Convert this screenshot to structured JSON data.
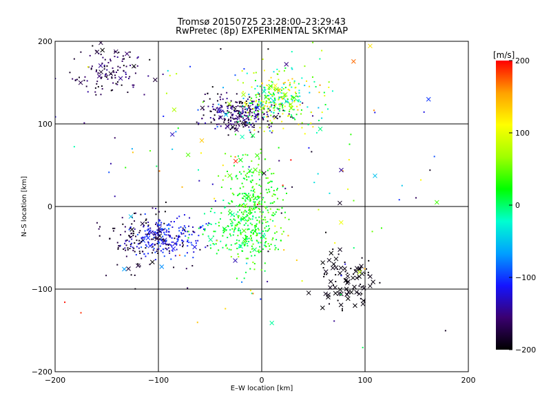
{
  "chart_data": {
    "type": "scatter",
    "title": "Tromsø 20150725 23:28:00–23:29:43",
    "subtitle": "RwPretec (8p) EXPERIMENTAL SKYMAP",
    "xlabel": "E–W location [km]",
    "ylabel": "N–S location [km]",
    "xlim": [
      -200,
      200
    ],
    "ylim": [
      -200,
      200
    ],
    "xticks": [
      -200,
      -100,
      0,
      100,
      200
    ],
    "yticks": [
      -200,
      -100,
      0,
      100,
      200
    ],
    "grid": true,
    "colorbar": {
      "label": "[m/s]",
      "range": [
        -200,
        200
      ],
      "ticks": [
        200,
        100,
        0,
        -100,
        -200
      ],
      "colormap": [
        "#000000",
        "#3a0070",
        "#1414ff",
        "#00a0ff",
        "#00ffd0",
        "#00ff00",
        "#a0ff00",
        "#ffff00",
        "#ffa000",
        "#ff0000"
      ]
    },
    "marker_types": [
      "dot",
      "cross"
    ],
    "clusters": [
      {
        "cx": -150,
        "cy": 165,
        "sx": 18,
        "sy": 18,
        "n": 110,
        "vmin": -200,
        "vmax": -140,
        "crosses": 14
      },
      {
        "cx": -20,
        "cy": 112,
        "sx": 18,
        "sy": 11,
        "n": 260,
        "vmin": -200,
        "vmax": -130,
        "crosses": 12
      },
      {
        "cx": 15,
        "cy": 130,
        "sx": 18,
        "sy": 16,
        "n": 260,
        "vmin": -60,
        "vmax": 140,
        "crosses": 22
      },
      {
        "cx": -8,
        "cy": -5,
        "sx": 12,
        "sy": 35,
        "n": 300,
        "vmin": 0,
        "vmax": 60,
        "crosses": 10
      },
      {
        "cx": -22,
        "cy": -28,
        "sx": 18,
        "sy": 15,
        "n": 150,
        "vmin": -20,
        "vmax": 40,
        "crosses": 8
      },
      {
        "cx": -95,
        "cy": -38,
        "sx": 18,
        "sy": 11,
        "n": 200,
        "vmin": -140,
        "vmax": -90,
        "crosses": 10
      },
      {
        "cx": -115,
        "cy": -40,
        "sx": 22,
        "sy": 18,
        "n": 120,
        "vmin": -200,
        "vmax": -160,
        "crosses": 8
      },
      {
        "cx": 80,
        "cy": -88,
        "sx": 16,
        "sy": 20,
        "n": 40,
        "vmin": -200,
        "vmax": -190,
        "crosses": 55
      },
      {
        "cx": 0,
        "cy": 40,
        "sx": 95,
        "sy": 95,
        "n": 160,
        "vmin": -200,
        "vmax": 200,
        "crosses": 30
      }
    ]
  }
}
